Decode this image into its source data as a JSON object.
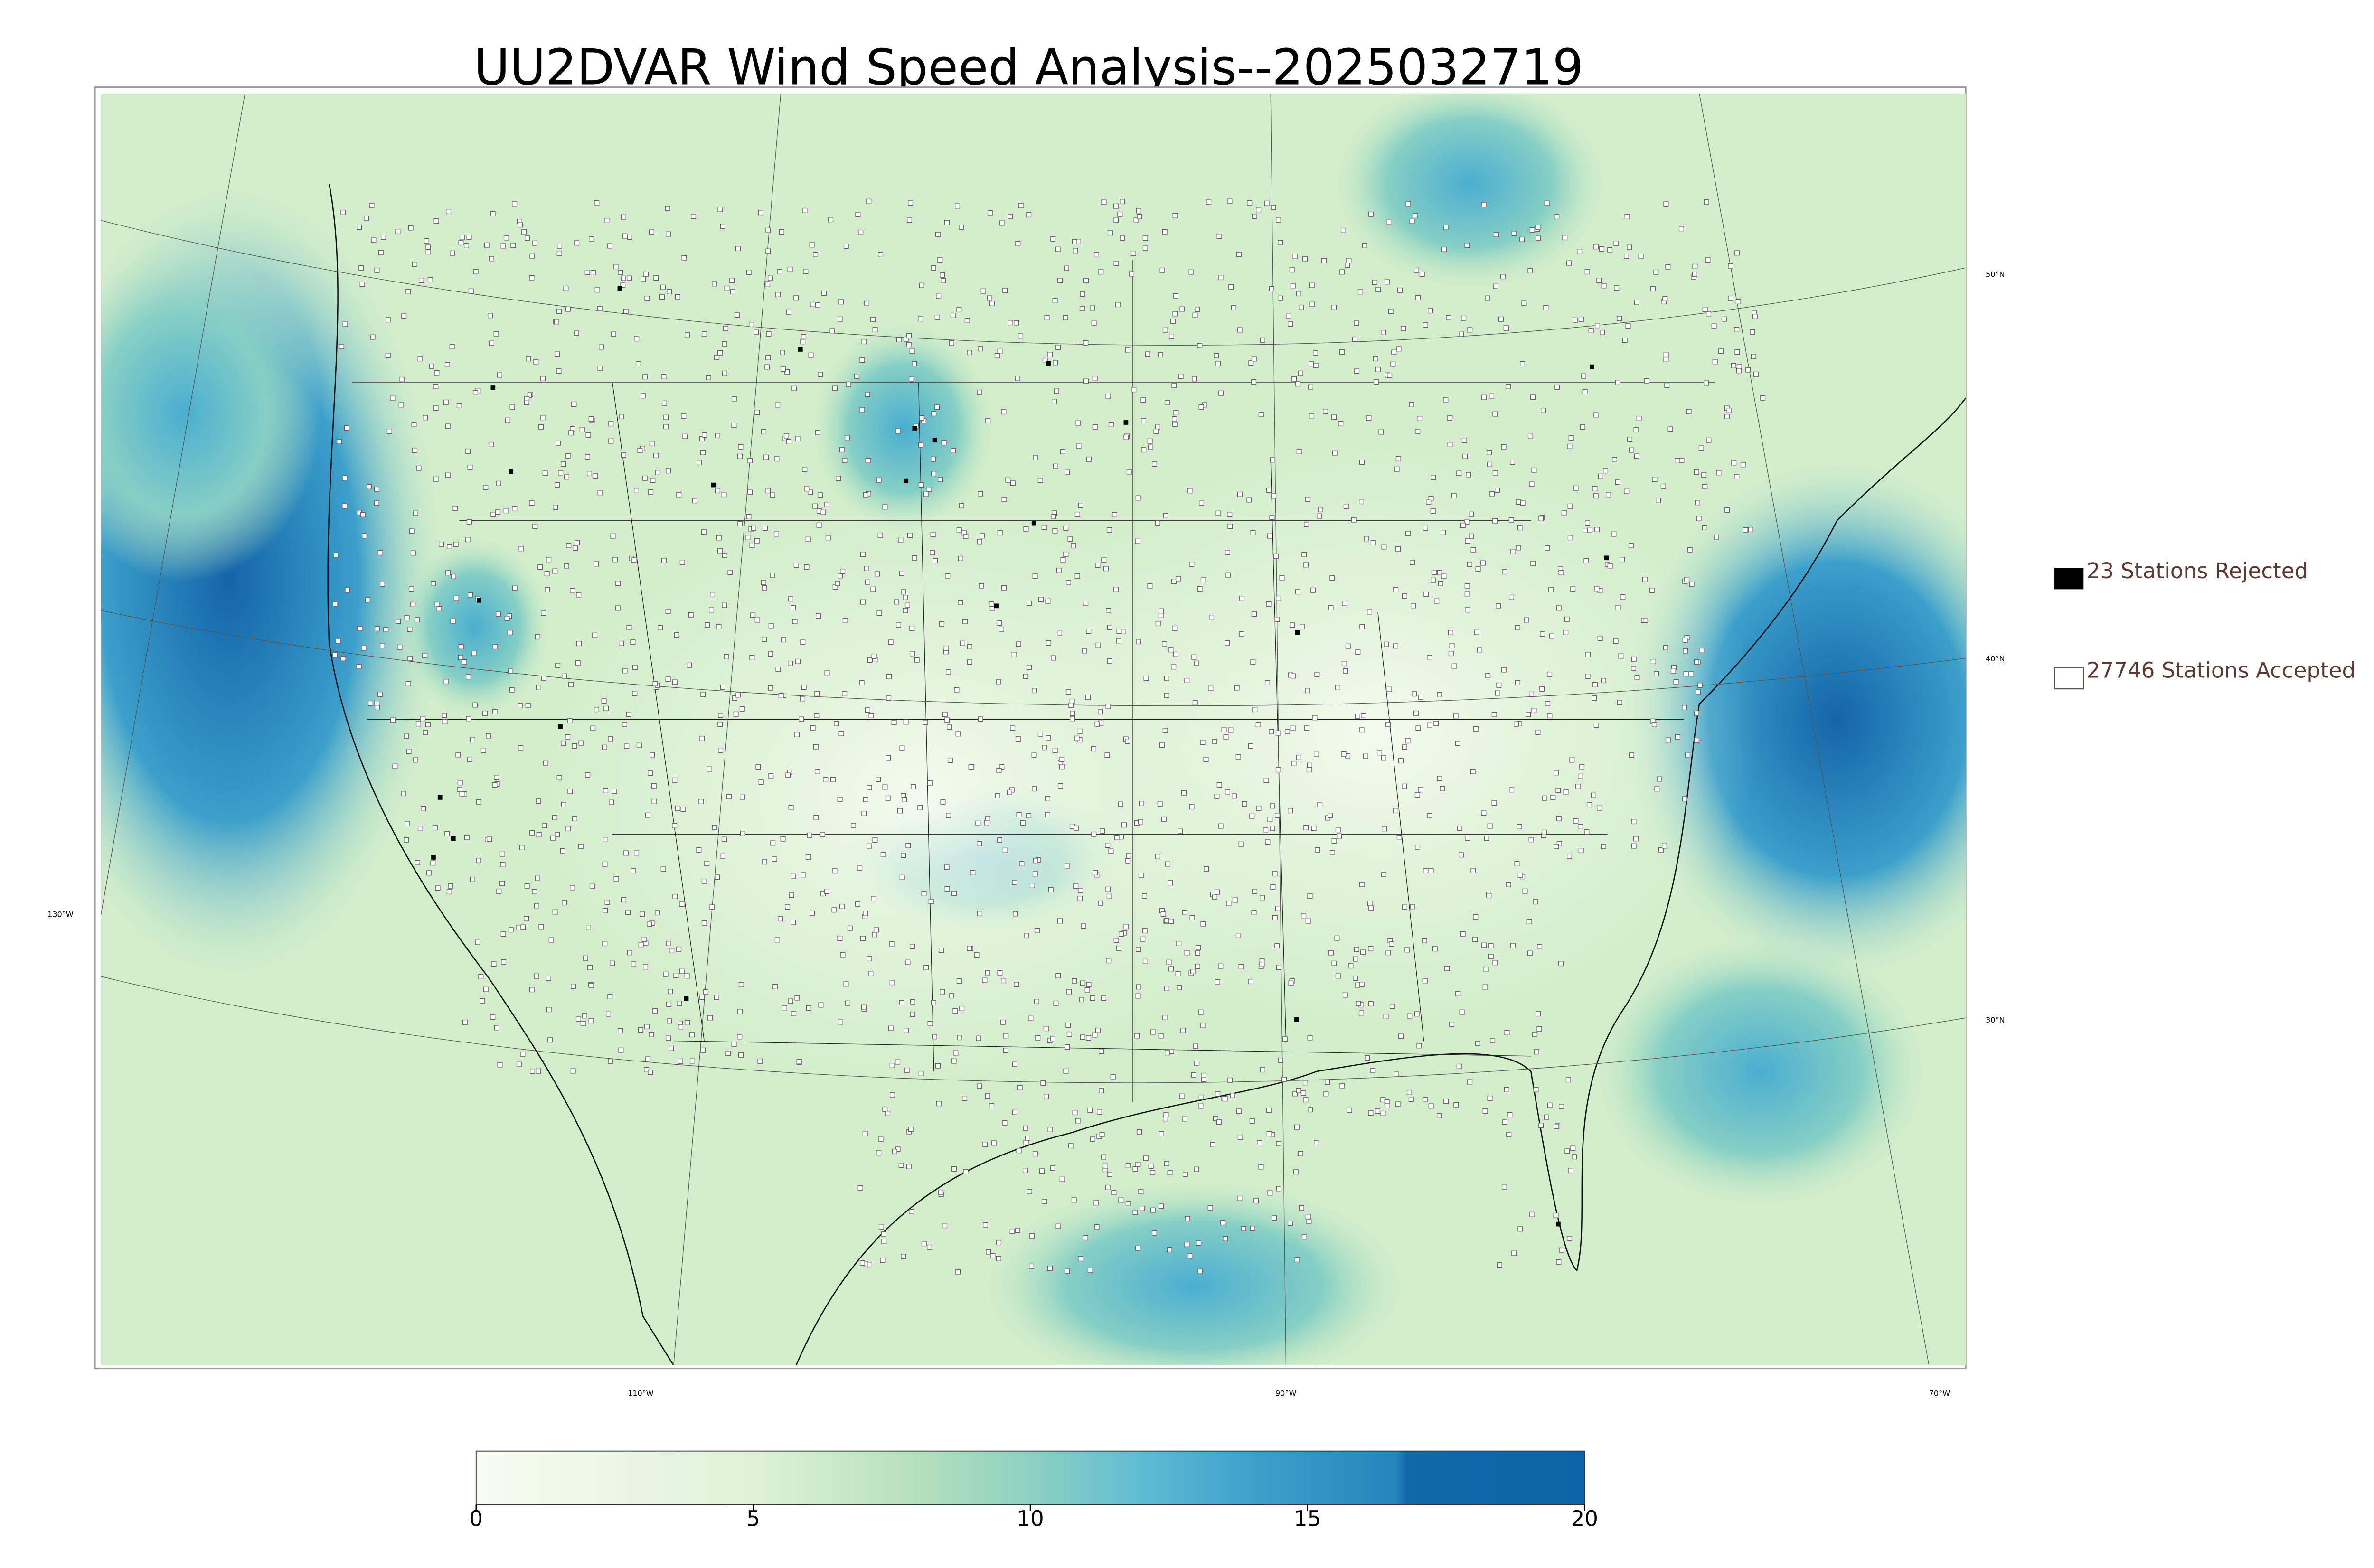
{
  "title": "UU2DVAR Wind Speed Analysis--2025032719",
  "graticule": {
    "lat_labels": [
      "50°N",
      "40°N",
      "30°N"
    ],
    "lon_labels": [
      "130°W",
      "110°W",
      "90°W",
      "70°W"
    ]
  },
  "legend": {
    "items": [
      "23 Stations Rejected",
      "27746 Stations Accepted"
    ]
  },
  "colorbar": {
    "lim": [
      0,
      20
    ],
    "ticks": [
      0,
      5,
      10,
      15,
      20
    ]
  }
}
